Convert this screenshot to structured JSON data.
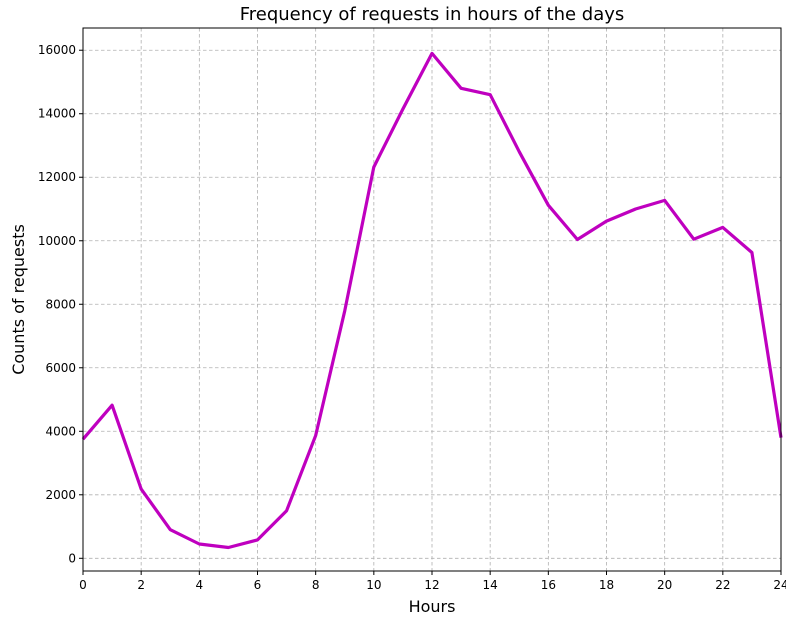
{
  "chart_data": {
    "type": "line",
    "title": "Frequency of requests in hours of the days",
    "xlabel": "Hours",
    "ylabel": "Counts of requests",
    "xlim": [
      0,
      24
    ],
    "ylim": [
      -400,
      16700
    ],
    "grid": true,
    "x_ticks": [
      0,
      2,
      4,
      6,
      8,
      10,
      12,
      14,
      16,
      18,
      20,
      22,
      24
    ],
    "y_ticks": [
      0,
      2000,
      4000,
      6000,
      8000,
      10000,
      12000,
      14000,
      16000
    ],
    "x_tick_labels": [
      "0",
      "2",
      "4",
      "6",
      "8",
      "10",
      "12",
      "14",
      "16",
      "18",
      "20",
      "22",
      "24"
    ],
    "y_tick_labels": [
      "0",
      "2000",
      "4000",
      "6000",
      "8000",
      "10000",
      "12000",
      "14000",
      "16000"
    ],
    "series": [
      {
        "color": "#bf00bf",
        "x": [
          0,
          1,
          2,
          3,
          4,
          5,
          6,
          7,
          8,
          9,
          10,
          11,
          12,
          13,
          14,
          15,
          16,
          17,
          18,
          19,
          20,
          21,
          22,
          23,
          24
        ],
        "values": [
          3750,
          4820,
          2180,
          900,
          450,
          340,
          580,
          1500,
          3870,
          7800,
          12320,
          14150,
          15900,
          14800,
          14600,
          12800,
          11120,
          10040,
          10620,
          11000,
          11270,
          10050,
          10420,
          9630,
          3800
        ]
      }
    ]
  }
}
